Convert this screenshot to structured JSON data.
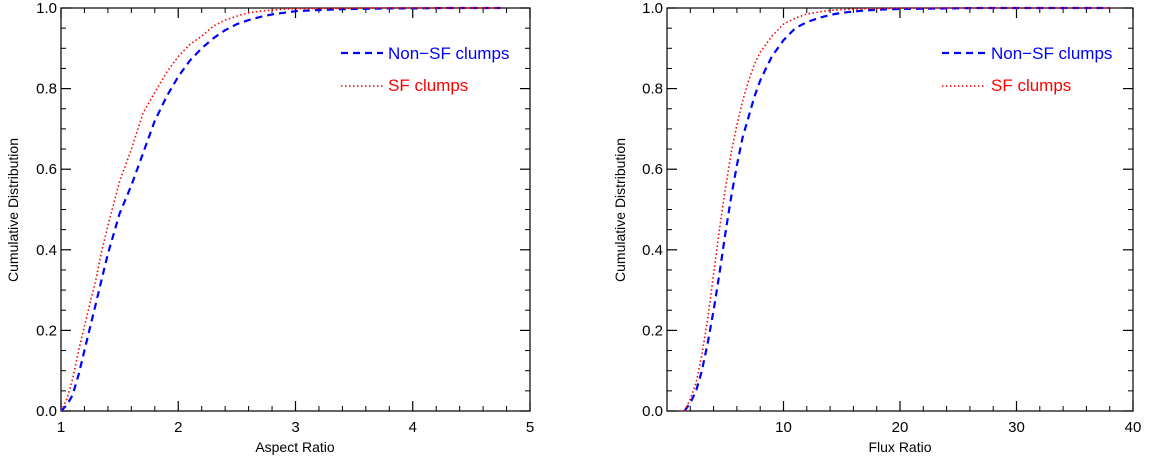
{
  "chart_data": [
    {
      "type": "line",
      "xlabel": "Aspect Ratio",
      "ylabel": "Cumulative Distribution",
      "xlim": [
        1,
        5
      ],
      "ylim": [
        0,
        1
      ],
      "x_ticks": [
        "1",
        "2",
        "3",
        "4",
        "5"
      ],
      "y_ticks": [
        "0.0",
        "0.2",
        "0.4",
        "0.6",
        "0.8",
        "1.0"
      ],
      "x_tick_values": [
        1,
        2,
        3,
        4,
        5
      ],
      "y_tick_values": [
        0,
        0.2,
        0.4,
        0.6,
        0.8,
        1.0
      ],
      "x_minor_step": 0.2,
      "y_minor_step": 0.05,
      "legend_position": "top-right",
      "series": [
        {
          "name": "Non−SF clumps",
          "color": "#0000ff",
          "style": "dashed",
          "x": [
            1.0,
            1.05,
            1.1,
            1.15,
            1.2,
            1.25,
            1.3,
            1.35,
            1.4,
            1.5,
            1.6,
            1.7,
            1.8,
            1.9,
            2.0,
            2.1,
            2.2,
            2.3,
            2.4,
            2.5,
            2.6,
            2.7,
            2.8,
            2.9,
            3.0,
            3.2,
            3.4,
            3.6,
            3.8,
            4.0,
            4.3,
            4.6,
            4.75
          ],
          "y": [
            0.0,
            0.015,
            0.04,
            0.09,
            0.15,
            0.21,
            0.27,
            0.33,
            0.39,
            0.49,
            0.56,
            0.64,
            0.72,
            0.78,
            0.83,
            0.87,
            0.9,
            0.925,
            0.945,
            0.96,
            0.97,
            0.978,
            0.984,
            0.988,
            0.992,
            0.995,
            0.997,
            0.998,
            0.999,
            0.999,
            1.0,
            1.0,
            1.0
          ]
        },
        {
          "name": "SF clumps",
          "color": "#ff0000",
          "style": "dotted",
          "x": [
            1.0,
            1.05,
            1.1,
            1.15,
            1.2,
            1.25,
            1.3,
            1.35,
            1.4,
            1.5,
            1.6,
            1.7,
            1.8,
            1.9,
            2.0,
            2.1,
            2.2,
            2.3,
            2.4,
            2.5,
            2.6,
            2.7,
            2.8,
            2.9,
            3.0,
            3.2,
            3.4,
            3.6,
            3.8,
            4.0,
            4.3,
            4.6,
            4.75
          ],
          "y": [
            0.0,
            0.03,
            0.08,
            0.15,
            0.21,
            0.27,
            0.33,
            0.4,
            0.46,
            0.57,
            0.65,
            0.74,
            0.79,
            0.84,
            0.88,
            0.91,
            0.93,
            0.955,
            0.97,
            0.98,
            0.988,
            0.992,
            0.995,
            0.997,
            0.998,
            0.999,
            0.999,
            1.0,
            1.0,
            1.0,
            1.0,
            1.0,
            1.0
          ]
        }
      ]
    },
    {
      "type": "line",
      "xlabel": "Flux Ratio",
      "ylabel": "Cumulative Distribution",
      "xlim": [
        0,
        40
      ],
      "ylim": [
        0,
        1
      ],
      "x_ticks": [
        "10",
        "20",
        "30",
        "40"
      ],
      "y_ticks": [
        "0.0",
        "0.2",
        "0.4",
        "0.6",
        "0.8",
        "1.0"
      ],
      "x_tick_values": [
        10,
        20,
        30,
        40
      ],
      "y_tick_values": [
        0,
        0.2,
        0.4,
        0.6,
        0.8,
        1.0
      ],
      "x_minor_step": 2,
      "y_minor_step": 0.05,
      "legend_position": "top-right",
      "series": [
        {
          "name": "Non−SF clumps",
          "color": "#0000ff",
          "style": "dashed",
          "x": [
            1.5,
            2,
            2.5,
            3,
            3.5,
            4,
            4.5,
            5,
            5.5,
            6,
            6.5,
            7,
            7.5,
            8,
            8.5,
            9,
            10,
            11,
            12,
            13,
            14,
            15,
            17,
            19,
            21,
            24,
            27,
            30,
            33,
            36,
            38
          ],
          "y": [
            0.0,
            0.02,
            0.05,
            0.1,
            0.17,
            0.25,
            0.34,
            0.44,
            0.53,
            0.61,
            0.68,
            0.73,
            0.78,
            0.82,
            0.85,
            0.88,
            0.92,
            0.95,
            0.965,
            0.975,
            0.983,
            0.988,
            0.994,
            0.997,
            0.998,
            0.999,
            1.0,
            1.0,
            1.0,
            1.0,
            1.0
          ]
        },
        {
          "name": "SF clumps",
          "color": "#ff0000",
          "style": "dotted",
          "x": [
            1.5,
            2,
            2.5,
            3,
            3.5,
            4,
            4.5,
            5,
            5.5,
            6,
            6.5,
            7,
            7.5,
            8,
            8.5,
            9,
            10,
            11,
            12,
            13,
            14,
            15,
            17,
            19,
            21,
            24,
            27,
            30,
            33,
            36,
            38
          ],
          "y": [
            0.0,
            0.03,
            0.07,
            0.14,
            0.23,
            0.34,
            0.45,
            0.55,
            0.64,
            0.71,
            0.77,
            0.82,
            0.86,
            0.89,
            0.91,
            0.93,
            0.96,
            0.975,
            0.985,
            0.99,
            0.994,
            0.996,
            0.998,
            0.999,
            1.0,
            1.0,
            1.0,
            1.0,
            1.0,
            1.0,
            1.0
          ]
        }
      ]
    }
  ]
}
